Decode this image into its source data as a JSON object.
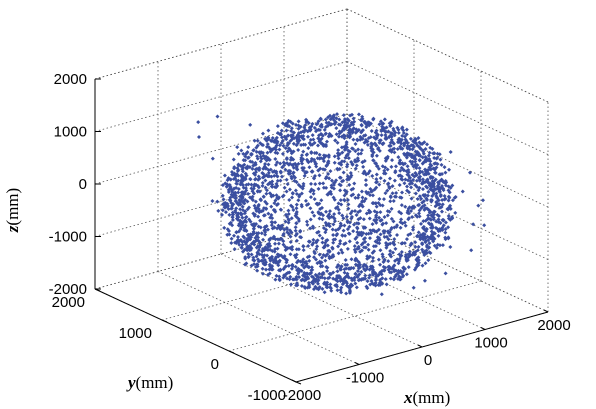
{
  "chart_data": {
    "type": "scatter",
    "dimensions": 3,
    "title": "",
    "xlabel": {
      "var": "x",
      "unit": "(mm)"
    },
    "ylabel": {
      "var": "y",
      "unit": "(mm)"
    },
    "zlabel": {
      "var": "z",
      "unit": "(mm)"
    },
    "xlim": [
      -2000,
      2000
    ],
    "ylim": [
      -1000,
      2000
    ],
    "zlim": [
      -2000,
      2000
    ],
    "xticks": [
      {
        "value": -2000,
        "label": "-2000"
      },
      {
        "value": -1000,
        "label": "-1000"
      },
      {
        "value": 0,
        "label": "0"
      },
      {
        "value": 1000,
        "label": "1000"
      },
      {
        "value": 2000,
        "label": "2000"
      }
    ],
    "yticks": [
      {
        "value": -1000,
        "label": "-1000"
      },
      {
        "value": 0,
        "label": "0"
      },
      {
        "value": 1000,
        "label": "1000"
      },
      {
        "value": 2000,
        "label": "2000"
      }
    ],
    "zticks": [
      {
        "value": -2000,
        "label": "-2000"
      },
      {
        "value": -1000,
        "label": "-1000"
      },
      {
        "value": 0,
        "label": "0"
      },
      {
        "value": 1000,
        "label": "1000"
      },
      {
        "value": 2000,
        "label": "2000"
      }
    ],
    "grid": true,
    "marker_color": "#3b4fa0",
    "series": [
      {
        "description_points": [
          [
            -1400,
            500,
            300
          ],
          [
            -1300,
            900,
            900
          ],
          [
            -1500,
            200,
            -200
          ],
          [
            -1350,
            -200,
            -700
          ],
          [
            -1200,
            1200,
            1100
          ],
          [
            -1000,
            1400,
            1200
          ],
          [
            -800,
            1300,
            1300
          ],
          [
            -600,
            1000,
            1250
          ],
          [
            -300,
            700,
            1300
          ],
          [
            0,
            500,
            1350
          ],
          [
            300,
            300,
            1300
          ],
          [
            600,
            100,
            1250
          ],
          [
            900,
            -100,
            1150
          ],
          [
            1200,
            -300,
            900
          ],
          [
            1400,
            -400,
            500
          ],
          [
            1500,
            -500,
            0
          ],
          [
            1450,
            -400,
            -500
          ],
          [
            1300,
            -200,
            -1000
          ],
          [
            1000,
            0,
            -1300
          ],
          [
            600,
            300,
            -1450
          ],
          [
            200,
            600,
            -1500
          ],
          [
            -200,
            800,
            -1450
          ],
          [
            -600,
            900,
            -1350
          ],
          [
            -1000,
            700,
            -1100
          ],
          [
            -1300,
            400,
            -800
          ],
          [
            -1500,
            100,
            100
          ],
          [
            -1400,
            -300,
            -300
          ],
          [
            -1200,
            -500,
            400
          ],
          [
            -900,
            -600,
            800
          ],
          [
            -500,
            -700,
            1000
          ],
          [
            -100,
            -800,
            1100
          ],
          [
            300,
            -900,
            1000
          ],
          [
            700,
            -950,
            700
          ],
          [
            1000,
            -900,
            300
          ],
          [
            1200,
            -800,
            -200
          ],
          [
            1100,
            -700,
            -700
          ],
          [
            800,
            -600,
            -1100
          ],
          [
            400,
            -500,
            -1300
          ],
          [
            0,
            -400,
            -1350
          ],
          [
            -400,
            -300,
            -1250
          ],
          [
            -800,
            -200,
            -1000
          ],
          [
            -1100,
            -100,
            -600
          ],
          [
            -600,
            500,
            200
          ],
          [
            0,
            0,
            0
          ],
          [
            400,
            200,
            -300
          ],
          [
            -200,
            -300,
            500
          ],
          [
            700,
            400,
            600
          ],
          [
            -700,
            1100,
            800
          ],
          [
            200,
            1200,
            900
          ],
          [
            900,
            800,
            400
          ],
          [
            1100,
            500,
            -400
          ],
          [
            -300,
            1300,
            -600
          ],
          [
            500,
            1000,
            -900
          ],
          [
            -900,
            1000,
            -900
          ],
          [
            100,
            -950,
            -800
          ],
          [
            -1200,
            1000,
            0
          ],
          [
            1350,
            100,
            300
          ],
          [
            -100,
            400,
            1400
          ],
          [
            50,
            450,
            1500
          ]
        ]
      }
    ]
  }
}
